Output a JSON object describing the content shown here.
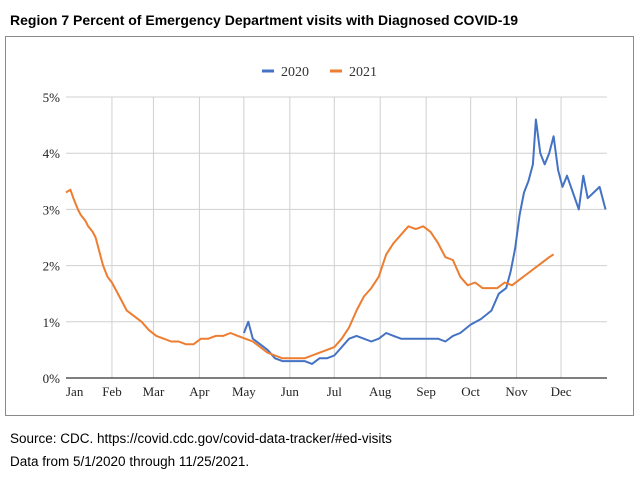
{
  "chart_data": {
    "type": "line",
    "title": "Region 7 Percent of Emergency Department visits with Diagnosed COVID-19",
    "xlabel": "",
    "ylabel": "",
    "x_unit": "day of year",
    "xlim": [
      0,
      365
    ],
    "ylim": [
      0,
      5
    ],
    "grid": true,
    "legend_position": "top-center",
    "x_ticks": [
      {
        "label": "Jan",
        "day": 0
      },
      {
        "label": "Feb",
        "day": 31
      },
      {
        "label": "Mar",
        "day": 59
      },
      {
        "label": "Apr",
        "day": 90
      },
      {
        "label": "May",
        "day": 120
      },
      {
        "label": "Jun",
        "day": 151
      },
      {
        "label": "Jul",
        "day": 181
      },
      {
        "label": "Aug",
        "day": 212
      },
      {
        "label": "Sep",
        "day": 243
      },
      {
        "label": "Oct",
        "day": 273
      },
      {
        "label": "Nov",
        "day": 304
      },
      {
        "label": "Dec",
        "day": 334
      }
    ],
    "y_ticks": [
      {
        "label": "0%",
        "value": 0
      },
      {
        "label": "1%",
        "value": 1
      },
      {
        "label": "2%",
        "value": 2
      },
      {
        "label": "3%",
        "value": 3
      },
      {
        "label": "4%",
        "value": 4
      },
      {
        "label": "5%",
        "value": 5
      }
    ],
    "series": [
      {
        "name": "2020",
        "color": "#4472c4",
        "points": [
          [
            120,
            0.8
          ],
          [
            123,
            1.0
          ],
          [
            126,
            0.7
          ],
          [
            131,
            0.6
          ],
          [
            136,
            0.5
          ],
          [
            141,
            0.35
          ],
          [
            146,
            0.3
          ],
          [
            151,
            0.3
          ],
          [
            156,
            0.3
          ],
          [
            161,
            0.3
          ],
          [
            166,
            0.25
          ],
          [
            171,
            0.35
          ],
          [
            176,
            0.35
          ],
          [
            181,
            0.4
          ],
          [
            186,
            0.55
          ],
          [
            191,
            0.7
          ],
          [
            196,
            0.75
          ],
          [
            201,
            0.7
          ],
          [
            206,
            0.65
          ],
          [
            211,
            0.7
          ],
          [
            216,
            0.8
          ],
          [
            221,
            0.75
          ],
          [
            226,
            0.7
          ],
          [
            231,
            0.7
          ],
          [
            236,
            0.7
          ],
          [
            241,
            0.7
          ],
          [
            246,
            0.7
          ],
          [
            251,
            0.7
          ],
          [
            256,
            0.65
          ],
          [
            261,
            0.75
          ],
          [
            266,
            0.8
          ],
          [
            273,
            0.95
          ],
          [
            280,
            1.05
          ],
          [
            287,
            1.2
          ],
          [
            292,
            1.5
          ],
          [
            297,
            1.6
          ],
          [
            300,
            1.9
          ],
          [
            303,
            2.3
          ],
          [
            306,
            2.9
          ],
          [
            309,
            3.3
          ],
          [
            312,
            3.5
          ],
          [
            315,
            3.8
          ],
          [
            317,
            4.6
          ],
          [
            320,
            4.0
          ],
          [
            323,
            3.8
          ],
          [
            326,
            4.0
          ],
          [
            329,
            4.3
          ],
          [
            332,
            3.7
          ],
          [
            335,
            3.4
          ],
          [
            338,
            3.6
          ],
          [
            342,
            3.3
          ],
          [
            346,
            3.0
          ],
          [
            349,
            3.6
          ],
          [
            352,
            3.2
          ],
          [
            356,
            3.3
          ],
          [
            360,
            3.4
          ],
          [
            364,
            3.0
          ]
        ]
      },
      {
        "name": "2021",
        "color": "#ed7d31",
        "points": [
          [
            0,
            3.3
          ],
          [
            3,
            3.35
          ],
          [
            5,
            3.2
          ],
          [
            8,
            3.0
          ],
          [
            10,
            2.9
          ],
          [
            13,
            2.8
          ],
          [
            15,
            2.7
          ],
          [
            18,
            2.6
          ],
          [
            20,
            2.5
          ],
          [
            23,
            2.2
          ],
          [
            25,
            2.0
          ],
          [
            28,
            1.8
          ],
          [
            31,
            1.7
          ],
          [
            36,
            1.45
          ],
          [
            41,
            1.2
          ],
          [
            46,
            1.1
          ],
          [
            51,
            1.0
          ],
          [
            56,
            0.85
          ],
          [
            61,
            0.75
          ],
          [
            66,
            0.7
          ],
          [
            71,
            0.65
          ],
          [
            76,
            0.65
          ],
          [
            81,
            0.6
          ],
          [
            86,
            0.6
          ],
          [
            91,
            0.7
          ],
          [
            96,
            0.7
          ],
          [
            101,
            0.75
          ],
          [
            106,
            0.75
          ],
          [
            111,
            0.8
          ],
          [
            116,
            0.75
          ],
          [
            121,
            0.7
          ],
          [
            126,
            0.65
          ],
          [
            131,
            0.55
          ],
          [
            136,
            0.45
          ],
          [
            141,
            0.4
          ],
          [
            146,
            0.35
          ],
          [
            151,
            0.35
          ],
          [
            156,
            0.35
          ],
          [
            161,
            0.35
          ],
          [
            166,
            0.4
          ],
          [
            171,
            0.45
          ],
          [
            176,
            0.5
          ],
          [
            181,
            0.55
          ],
          [
            186,
            0.7
          ],
          [
            191,
            0.9
          ],
          [
            196,
            1.2
          ],
          [
            201,
            1.45
          ],
          [
            206,
            1.6
          ],
          [
            211,
            1.8
          ],
          [
            216,
            2.2
          ],
          [
            221,
            2.4
          ],
          [
            226,
            2.55
          ],
          [
            231,
            2.7
          ],
          [
            236,
            2.65
          ],
          [
            241,
            2.7
          ],
          [
            246,
            2.6
          ],
          [
            251,
            2.4
          ],
          [
            256,
            2.15
          ],
          [
            261,
            2.1
          ],
          [
            266,
            1.8
          ],
          [
            271,
            1.65
          ],
          [
            276,
            1.7
          ],
          [
            281,
            1.6
          ],
          [
            286,
            1.6
          ],
          [
            291,
            1.6
          ],
          [
            296,
            1.7
          ],
          [
            301,
            1.65
          ],
          [
            306,
            1.75
          ],
          [
            311,
            1.85
          ],
          [
            316,
            1.95
          ],
          [
            321,
            2.05
          ],
          [
            326,
            2.15
          ],
          [
            329,
            2.2
          ]
        ]
      }
    ]
  },
  "source": {
    "line1": "Source: CDC. https://covid.cdc.gov/covid-data-tracker/#ed-visits",
    "line2": "Data from 5/1/2020 through 11/25/2021."
  }
}
